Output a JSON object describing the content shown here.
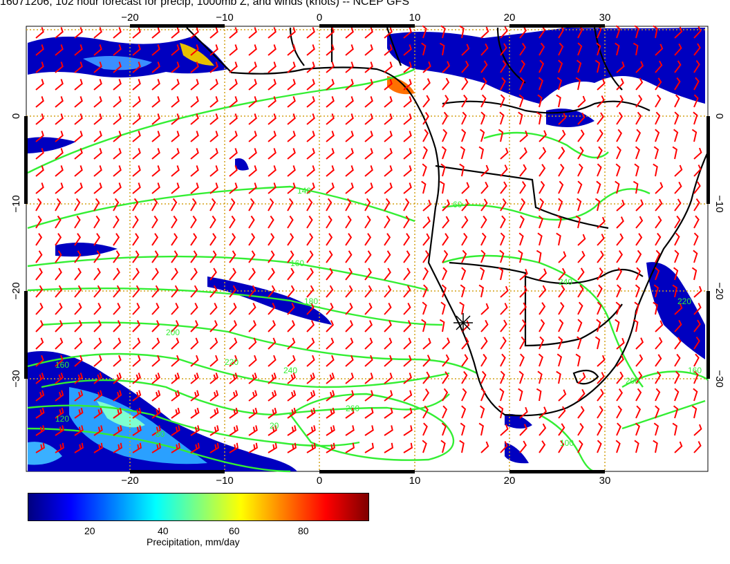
{
  "title": "16071206, 102 hour forecast for precip, 1000mb Z, and winds (knots) -- NCEP GFS",
  "map": {
    "lon_ticks": [
      "−20",
      "−10",
      "0",
      "10",
      "20",
      "30"
    ],
    "lat_ticks": [
      "0",
      "−10",
      "−20",
      "−30"
    ],
    "contour_labels": [
      "140",
      "160",
      "180",
      "200",
      "220",
      "240",
      "260",
      "160",
      "120",
      "80",
      "20",
      "60",
      "240",
      "220",
      "200",
      "160",
      "100"
    ],
    "wind_color": "#ff0000",
    "contour_color": "#33ee33",
    "grid_color": "#d4a017",
    "coast_color": "#000000"
  },
  "colorbar": {
    "title": "Precipitation, mm/day",
    "ticks": [
      "20",
      "40",
      "60",
      "80"
    ],
    "stops": [
      "#00007f",
      "#0000ff",
      "#007fff",
      "#00ffff",
      "#7fff7f",
      "#ffff00",
      "#ff7f00",
      "#ff0000",
      "#7f0000"
    ]
  }
}
